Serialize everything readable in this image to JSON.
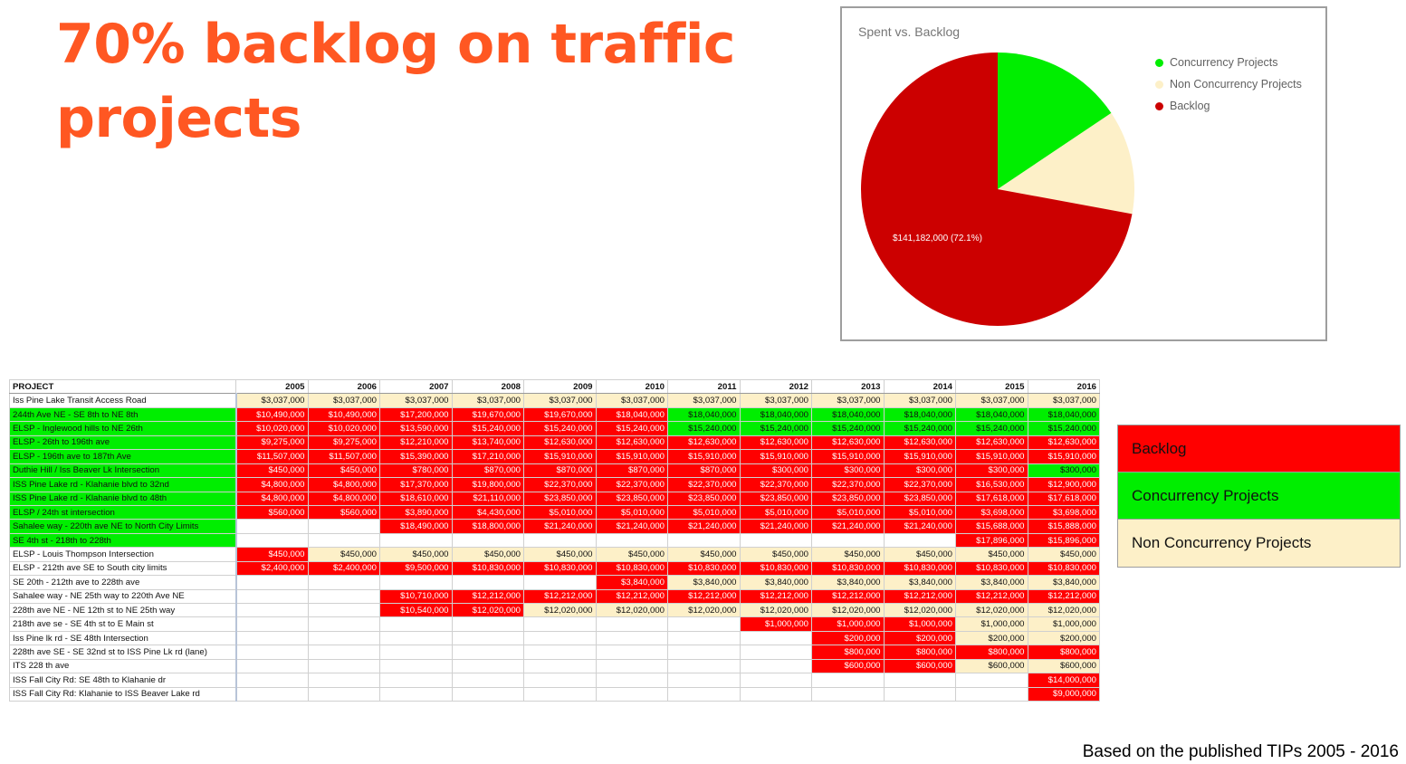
{
  "title": "70% backlog on traffic projects",
  "footer": "Based on the published TIPs 2005 - 2016",
  "colors": {
    "backlog": "#cc0000",
    "concurrency": "#00ee00",
    "non_concurrency": "#fdf0c8",
    "title": "#ff5722"
  },
  "chart_data": {
    "type": "pie",
    "title": "Spent vs. Backlog",
    "legend_position": "right",
    "series": [
      {
        "name": "Concurrency Projects",
        "percent": 15.6,
        "color": "#00ee00"
      },
      {
        "name": "Non Concurrency Projects",
        "percent": 12.3,
        "color": "#fdf0c8"
      },
      {
        "name": "Backlog",
        "percent": 72.1,
        "color": "#cc0000",
        "label": "$141,182,000 (72.1%)"
      }
    ]
  },
  "table": {
    "header": [
      "PROJECT",
      "2005",
      "2006",
      "2007",
      "2008",
      "2009",
      "2010",
      "2011",
      "2012",
      "2013",
      "2014",
      "2015",
      "2016"
    ],
    "rows": [
      {
        "name": "Iss Pine Lake Transit Access Road",
        "type": "n",
        "cells": [
          "$3,037,000",
          "$3,037,000",
          "$3,037,000",
          "$3,037,000",
          "$3,037,000",
          "$3,037,000",
          "$3,037,000",
          "$3,037,000",
          "$3,037,000",
          "$3,037,000",
          "$3,037,000",
          "$3,037,000"
        ],
        "colors": "nnnnnnnnnnnn"
      },
      {
        "name": "244th Ave NE - SE 8th to NE 8th",
        "type": "c",
        "cells": [
          "$10,490,000",
          "$10,490,000",
          "$17,200,000",
          "$19,670,000",
          "$19,670,000",
          "$18,040,000",
          "$18,040,000",
          "$18,040,000",
          "$18,040,000",
          "$18,040,000",
          "$18,040,000",
          "$18,040,000"
        ],
        "colors": "bbbbbbcccccc"
      },
      {
        "name": "ELSP - Inglewood hills to NE 26th",
        "type": "c",
        "cells": [
          "$10,020,000",
          "$10,020,000",
          "$13,590,000",
          "$15,240,000",
          "$15,240,000",
          "$15,240,000",
          "$15,240,000",
          "$15,240,000",
          "$15,240,000",
          "$15,240,000",
          "$15,240,000",
          "$15,240,000"
        ],
        "colors": "bbbbbbcccccc"
      },
      {
        "name": "ELSP - 26th to 196th ave",
        "type": "c",
        "cells": [
          "$9,275,000",
          "$9,275,000",
          "$12,210,000",
          "$13,740,000",
          "$12,630,000",
          "$12,630,000",
          "$12,630,000",
          "$12,630,000",
          "$12,630,000",
          "$12,630,000",
          "$12,630,000",
          "$12,630,000"
        ],
        "colors": "bbbbbbbbbbbb"
      },
      {
        "name": "ELSP - 196th ave to 187th Ave",
        "type": "c",
        "cells": [
          "$11,507,000",
          "$11,507,000",
          "$15,390,000",
          "$17,210,000",
          "$15,910,000",
          "$15,910,000",
          "$15,910,000",
          "$15,910,000",
          "$15,910,000",
          "$15,910,000",
          "$15,910,000",
          "$15,910,000"
        ],
        "colors": "bbbbbbbbbbbb"
      },
      {
        "name": "Duthie Hill / Iss Beaver Lk Intersection",
        "type": "c",
        "cells": [
          "$450,000",
          "$450,000",
          "$780,000",
          "$870,000",
          "$870,000",
          "$870,000",
          "$870,000",
          "$300,000",
          "$300,000",
          "$300,000",
          "$300,000",
          "$300,000"
        ],
        "colors": "bbbbbbbbbbbc"
      },
      {
        "name": "ISS Pine Lake rd - Klahanie blvd to 32nd",
        "type": "c",
        "cells": [
          "$4,800,000",
          "$4,800,000",
          "$17,370,000",
          "$19,800,000",
          "$22,370,000",
          "$22,370,000",
          "$22,370,000",
          "$22,370,000",
          "$22,370,000",
          "$22,370,000",
          "$16,530,000",
          "$12,900,000"
        ],
        "colors": "bbbbbbbbbbbb"
      },
      {
        "name": "ISS Pine Lake rd - Klahanie blvd to 48th",
        "type": "c",
        "cells": [
          "$4,800,000",
          "$4,800,000",
          "$18,610,000",
          "$21,110,000",
          "$23,850,000",
          "$23,850,000",
          "$23,850,000",
          "$23,850,000",
          "$23,850,000",
          "$23,850,000",
          "$17,618,000",
          "$17,618,000"
        ],
        "colors": "bbbbbbbbbbbb"
      },
      {
        "name": "ELSP / 24th st intersection",
        "type": "c",
        "cells": [
          "$560,000",
          "$560,000",
          "$3,890,000",
          "$4,430,000",
          "$5,010,000",
          "$5,010,000",
          "$5,010,000",
          "$5,010,000",
          "$5,010,000",
          "$5,010,000",
          "$3,698,000",
          "$3,698,000"
        ],
        "colors": "bbbbbbbbbbbb"
      },
      {
        "name": "Sahalee way - 220th ave NE to North City Limits",
        "type": "c",
        "cells": [
          "",
          "",
          "$18,490,000",
          "$18,800,000",
          "$21,240,000",
          "$21,240,000",
          "$21,240,000",
          "$21,240,000",
          "$21,240,000",
          "$21,240,000",
          "$15,688,000",
          "$15,888,000"
        ],
        "colors": "wwbbbbbbbbbb"
      },
      {
        "name": "SE 4th st - 218th to 228th",
        "type": "c",
        "cells": [
          "",
          "",
          "",
          "",
          "",
          "",
          "",
          "",
          "",
          "",
          "$17,896,000",
          "$15,896,000"
        ],
        "colors": "wwwwwwwwwwbb"
      },
      {
        "name": "ELSP - Louis Thompson Intersection",
        "type": "n",
        "cells": [
          "$450,000",
          "$450,000",
          "$450,000",
          "$450,000",
          "$450,000",
          "$450,000",
          "$450,000",
          "$450,000",
          "$450,000",
          "$450,000",
          "$450,000",
          "$450,000"
        ],
        "colors": "bnnnnnnnnnnn"
      },
      {
        "name": "ELSP - 212th ave SE to South city limits",
        "type": "n",
        "cells": [
          "$2,400,000",
          "$2,400,000",
          "$9,500,000",
          "$10,830,000",
          "$10,830,000",
          "$10,830,000",
          "$10,830,000",
          "$10,830,000",
          "$10,830,000",
          "$10,830,000",
          "$10,830,000",
          "$10,830,000"
        ],
        "colors": "bbbbbbbbbbbb"
      },
      {
        "name": "SE 20th - 212th ave to 228th ave",
        "type": "n",
        "cells": [
          "",
          "",
          "",
          "",
          "",
          "$3,840,000",
          "$3,840,000",
          "$3,840,000",
          "$3,840,000",
          "$3,840,000",
          "$3,840,000",
          "$3,840,000"
        ],
        "colors": "wwwwwbnnnnnn"
      },
      {
        "name": "Sahalee way - NE 25th way to 220th Ave NE",
        "type": "n",
        "cells": [
          "",
          "",
          "$10,710,000",
          "$12,212,000",
          "$12,212,000",
          "$12,212,000",
          "$12,212,000",
          "$12,212,000",
          "$12,212,000",
          "$12,212,000",
          "$12,212,000",
          "$12,212,000"
        ],
        "colors": "wwbbbbbbbbbb"
      },
      {
        "name": "228th ave NE - NE 12th st to NE 25th way",
        "type": "n",
        "cells": [
          "",
          "",
          "$10,540,000",
          "$12,020,000",
          "$12,020,000",
          "$12,020,000",
          "$12,020,000",
          "$12,020,000",
          "$12,020,000",
          "$12,020,000",
          "$12,020,000",
          "$12,020,000"
        ],
        "colors": "wwbbnnnnnnnn"
      },
      {
        "name": "218th ave se - SE 4th st to E Main st",
        "type": "n",
        "cells": [
          "",
          "",
          "",
          "",
          "",
          "",
          "",
          "$1,000,000",
          "$1,000,000",
          "$1,000,000",
          "$1,000,000",
          "$1,000,000"
        ],
        "colors": "wwwwwwwbbbnn"
      },
      {
        "name": "Iss Pine lk rd - SE 48th Intersection",
        "type": "n",
        "cells": [
          "",
          "",
          "",
          "",
          "",
          "",
          "",
          "",
          "$200,000",
          "$200,000",
          "$200,000",
          "$200,000"
        ],
        "colors": "wwwwwwwwbbnn"
      },
      {
        "name": "228th ave SE - SE 32nd st to ISS Pine Lk rd (lane)",
        "type": "n",
        "cells": [
          "",
          "",
          "",
          "",
          "",
          "",
          "",
          "",
          "$800,000",
          "$800,000",
          "$800,000",
          "$800,000"
        ],
        "colors": "wwwwwwwwbbbb"
      },
      {
        "name": "ITS 228 th ave",
        "type": "n",
        "cells": [
          "",
          "",
          "",
          "",
          "",
          "",
          "",
          "",
          "$600,000",
          "$600,000",
          "$600,000",
          "$600,000"
        ],
        "colors": "wwwwwwwwbbnn"
      },
      {
        "name": "ISS Fall City Rd: SE 48th to Klahanie dr",
        "type": "n",
        "cells": [
          "",
          "",
          "",
          "",
          "",
          "",
          "",
          "",
          "",
          "",
          "",
          "$14,000,000"
        ],
        "colors": "wwwwwwwwwwwb"
      },
      {
        "name": "ISS Fall City Rd: Klahanie to ISS Beaver Lake rd",
        "type": "n",
        "cells": [
          "",
          "",
          "",
          "",
          "",
          "",
          "",
          "",
          "",
          "",
          "",
          "$9,000,000"
        ],
        "colors": "wwwwwwwwwwwb"
      }
    ]
  },
  "key": [
    {
      "label": "Backlog",
      "color": "#ff0000"
    },
    {
      "label": "Concurrency Projects",
      "color": "#00ee00"
    },
    {
      "label": "Non Concurrency Projects",
      "color": "#fdf0c8"
    }
  ]
}
